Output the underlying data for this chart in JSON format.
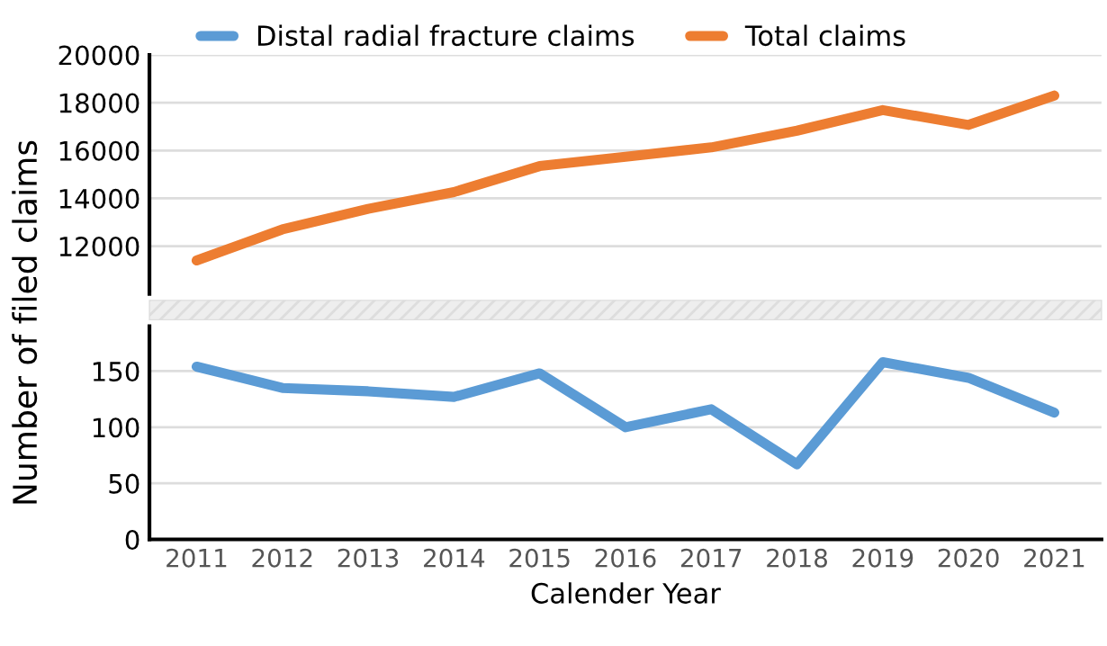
{
  "chart_data": [
    {
      "type": "line",
      "ylabel": "Number of filed claims",
      "categories": [
        "2011",
        "2012",
        "2013",
        "2014",
        "2015",
        "2016",
        "2017",
        "2018",
        "2019",
        "2020",
        "2021"
      ],
      "series": [
        {
          "name": "Total claims",
          "color": "#ed7d31",
          "values": [
            11400,
            12700,
            13560,
            14260,
            15350,
            15740,
            16130,
            16830,
            17690,
            17070,
            18300
          ]
        }
      ],
      "ylim": [
        10000,
        20000
      ],
      "yticks": [
        12000,
        14000,
        16000,
        18000,
        20000
      ],
      "tick_labels": "y",
      "grid": "y",
      "legend": "top"
    },
    {
      "type": "line",
      "xlabel": "Calender Year",
      "categories": [
        "2011",
        "2012",
        "2013",
        "2014",
        "2015",
        "2016",
        "2017",
        "2018",
        "2019",
        "2020",
        "2021"
      ],
      "series": [
        {
          "name": "Distal radial fracture claims",
          "color": "#5b9bd5",
          "values": [
            154,
            135,
            132,
            127,
            148,
            100,
            116,
            67,
            158,
            144,
            113
          ]
        }
      ],
      "ylim": [
        0,
        190
      ],
      "yticks": [
        0,
        50,
        100,
        150
      ],
      "grid": "y",
      "legend": "top"
    }
  ]
}
